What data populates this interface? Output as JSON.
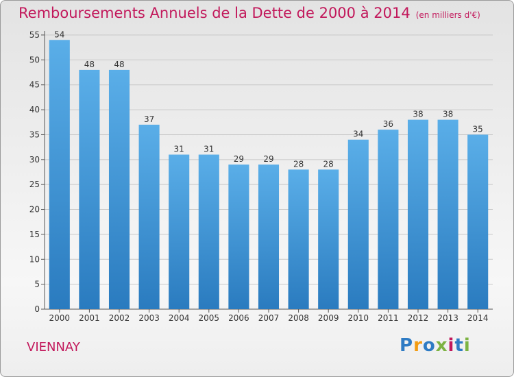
{
  "title": "Remboursements Annuels de la Dette de 2000 à 2014",
  "unit_note": "(en milliers d'€)",
  "commune": "VIENNAY",
  "logo": {
    "text": "Proxiti",
    "letter_colors": [
      "#2e7bc4",
      "#f39c12",
      "#2e7bc4",
      "#7cb342",
      "#c2185b",
      "#2e7bc4",
      "#7cb342"
    ]
  },
  "chart_data": {
    "type": "bar",
    "categories": [
      "2000",
      "2001",
      "2002",
      "2003",
      "2004",
      "2005",
      "2006",
      "2007",
      "2008",
      "2009",
      "2010",
      "2011",
      "2012",
      "2013",
      "2014"
    ],
    "values": [
      54,
      48,
      48,
      37,
      31,
      31,
      29,
      29,
      28,
      28,
      34,
      36,
      38,
      38,
      35
    ],
    "ylim": [
      0,
      55
    ],
    "yticks": [
      0,
      5,
      10,
      15,
      20,
      25,
      30,
      35,
      40,
      45,
      50,
      55
    ],
    "grid": true,
    "bar_color_top": "#5aaee8",
    "bar_color_bottom": "#2a7bbf"
  }
}
